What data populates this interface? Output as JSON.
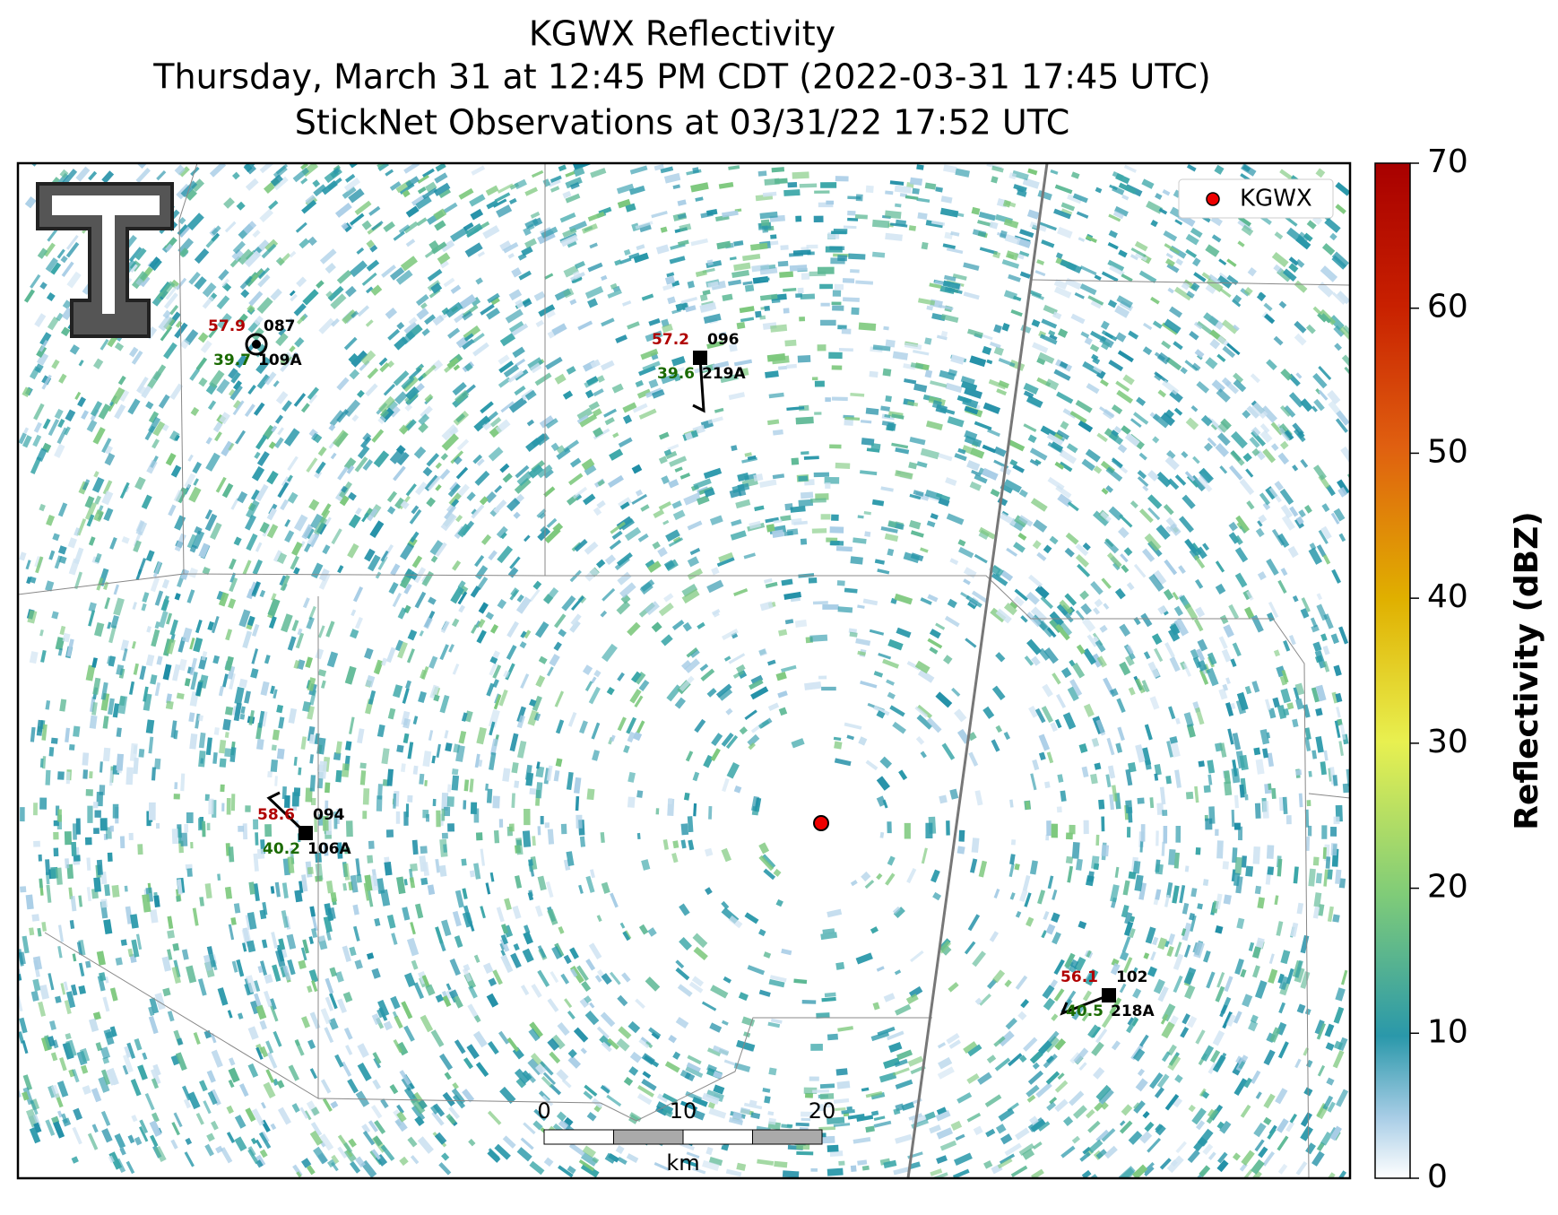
{
  "title": [
    "KGWX Reflectivity",
    "Thursday, March 31 at 12:45 PM CDT (2022-03-31 17:45 UTC)",
    "StickNet Observations at 03/31/22 17:52 UTC"
  ],
  "legend": "KGWX",
  "colorbar": {
    "label": "Reflectivity (dBZ)",
    "lim": [
      0,
      70
    ],
    "ticks": [
      0,
      10,
      20,
      30,
      40,
      50,
      60,
      70
    ]
  },
  "stations": [
    {
      "temp": 57.9,
      "dew": 39.7,
      "id": "087",
      "probe": "109A"
    },
    {
      "temp": 57.2,
      "dew": 39.6,
      "id": "096",
      "probe": "219A"
    },
    {
      "temp": 58.6,
      "dew": 40.2,
      "id": "094",
      "probe": "106A"
    },
    {
      "temp": 56.1,
      "dew": 40.5,
      "id": "102",
      "probe": "218A"
    }
  ],
  "scalebar": {
    "ticks": [
      0,
      10,
      20
    ],
    "unit": "km"
  }
}
